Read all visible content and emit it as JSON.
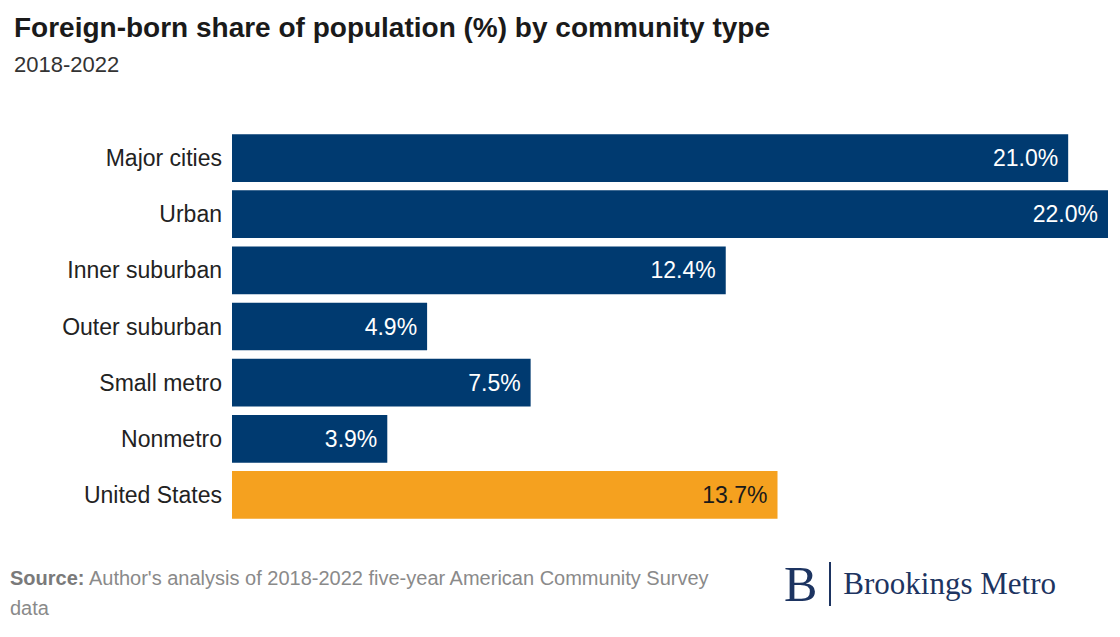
{
  "chart_data": {
    "type": "bar",
    "orientation": "horizontal",
    "title": "Foreign-born share of population (%) by community type",
    "subtitle": "2018-2022",
    "categories": [
      "Major cities",
      "Urban",
      "Inner suburban",
      "Outer suburban",
      "Small metro",
      "Nonmetro",
      "United States"
    ],
    "values": [
      21.0,
      22.0,
      12.4,
      4.9,
      7.5,
      3.9,
      13.7
    ],
    "value_labels": [
      "21.0%",
      "22.0%",
      "12.4%",
      "4.9%",
      "7.5%",
      "3.9%",
      "13.7%"
    ],
    "colors": [
      "#003a70",
      "#003a70",
      "#003a70",
      "#003a70",
      "#003a70",
      "#003a70",
      "#f5a11f"
    ],
    "xlim": [
      0,
      22
    ],
    "data_labels": true,
    "tick_labels": "y",
    "grid": false,
    "source_label": "Source:",
    "source": "Author's analysis of 2018-2022 five-year American Community Survey data",
    "logo": {
      "mark": "B",
      "text": "Brookings Metro"
    }
  }
}
